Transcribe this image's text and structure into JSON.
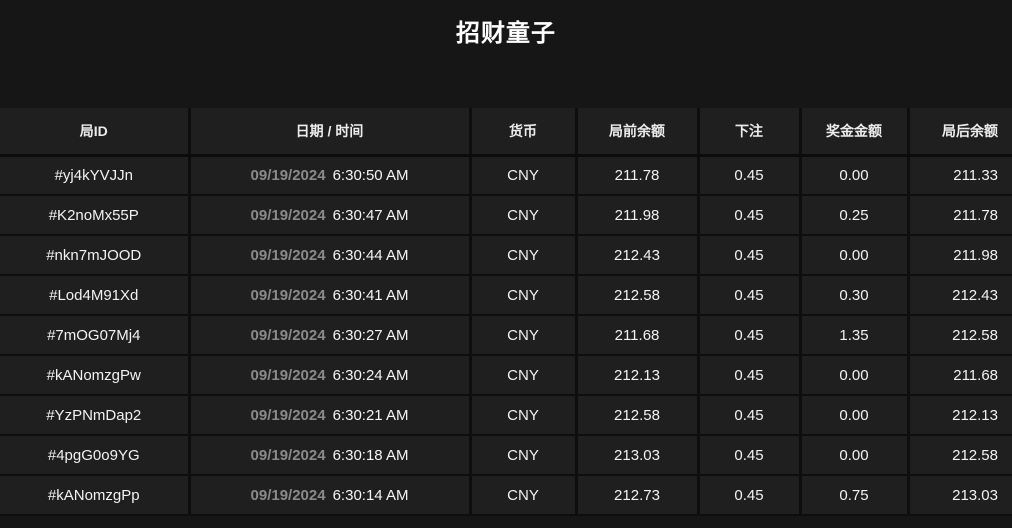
{
  "page": {
    "title": "招财童子"
  },
  "colors": {
    "page_bg": "#161616",
    "cell_bg": "#1f1f1f",
    "grid_line": "#0e0e0e",
    "text_primary": "#f2f2f2",
    "text_muted": "#8a8a8a"
  },
  "table": {
    "columns": [
      "局ID",
      "日期 / 时间",
      "货币",
      "局前余额",
      "下注",
      "奖金金额",
      "局后余额"
    ],
    "rows": [
      {
        "id": "#yj4kYVJJn",
        "date": "09/19/2024",
        "time": "6:30:50 AM",
        "currency": "CNY",
        "balance_before": "211.78",
        "bet": "0.45",
        "prize": "0.00",
        "balance_after": "211.33"
      },
      {
        "id": "#K2noMx55P",
        "date": "09/19/2024",
        "time": "6:30:47 AM",
        "currency": "CNY",
        "balance_before": "211.98",
        "bet": "0.45",
        "prize": "0.25",
        "balance_after": "211.78"
      },
      {
        "id": "#nkn7mJOOD",
        "date": "09/19/2024",
        "time": "6:30:44 AM",
        "currency": "CNY",
        "balance_before": "212.43",
        "bet": "0.45",
        "prize": "0.00",
        "balance_after": "211.98"
      },
      {
        "id": "#Lod4M91Xd",
        "date": "09/19/2024",
        "time": "6:30:41 AM",
        "currency": "CNY",
        "balance_before": "212.58",
        "bet": "0.45",
        "prize": "0.30",
        "balance_after": "212.43"
      },
      {
        "id": "#7mOG07Mj4",
        "date": "09/19/2024",
        "time": "6:30:27 AM",
        "currency": "CNY",
        "balance_before": "211.68",
        "bet": "0.45",
        "prize": "1.35",
        "balance_after": "212.58"
      },
      {
        "id": "#kANomzgPw",
        "date": "09/19/2024",
        "time": "6:30:24 AM",
        "currency": "CNY",
        "balance_before": "212.13",
        "bet": "0.45",
        "prize": "0.00",
        "balance_after": "211.68"
      },
      {
        "id": "#YzPNmDap2",
        "date": "09/19/2024",
        "time": "6:30:21 AM",
        "currency": "CNY",
        "balance_before": "212.58",
        "bet": "0.45",
        "prize": "0.00",
        "balance_after": "212.13"
      },
      {
        "id": "#4pgG0o9YG",
        "date": "09/19/2024",
        "time": "6:30:18 AM",
        "currency": "CNY",
        "balance_before": "213.03",
        "bet": "0.45",
        "prize": "0.00",
        "balance_after": "212.58"
      },
      {
        "id": "#kANomzgPp",
        "date": "09/19/2024",
        "time": "6:30:14 AM",
        "currency": "CNY",
        "balance_before": "212.73",
        "bet": "0.45",
        "prize": "0.75",
        "balance_after": "213.03"
      }
    ]
  }
}
